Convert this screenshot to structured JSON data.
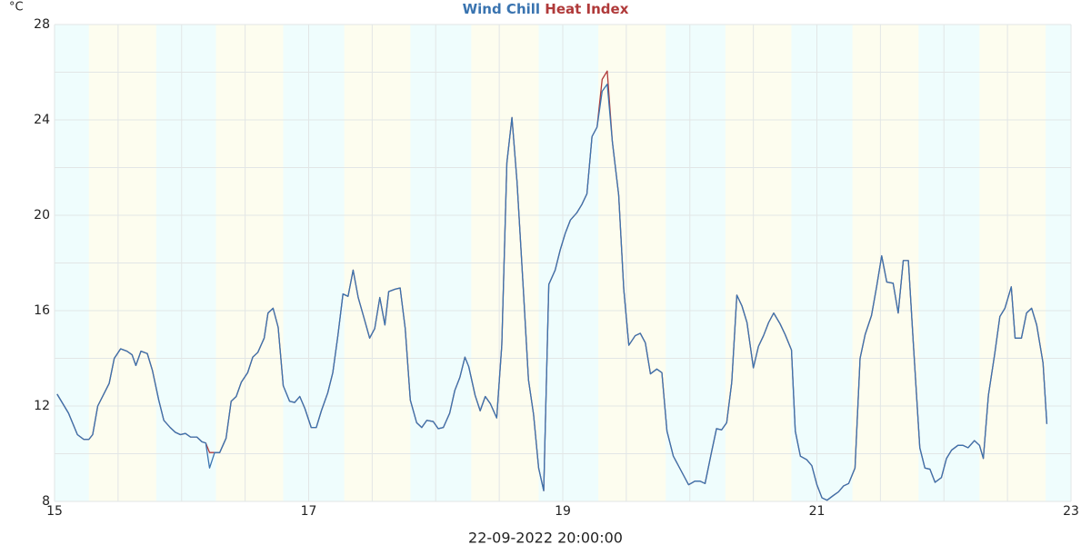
{
  "chart_data": {
    "type": "line",
    "title_series": [
      0,
      1
    ],
    "y_label": "°C",
    "x_label": "22-09-2022 20:00:00",
    "xlim": [
      15,
      23
    ],
    "ylim": [
      8,
      28
    ],
    "xticks": [
      15,
      17,
      19,
      21,
      23
    ],
    "yticks": [
      8,
      12,
      16,
      20,
      24,
      28
    ],
    "xgrid": [
      15.5,
      16,
      16.5,
      17,
      17.5,
      18,
      18.5,
      19,
      19.5,
      20,
      20.5,
      21,
      21.5,
      22,
      22.5
    ],
    "ygrid": [
      10,
      12,
      14,
      16,
      18,
      20,
      22,
      24,
      26
    ],
    "grid": true,
    "night_color": "#effdfd",
    "day_color": "#fdfdef",
    "day_bands": [
      [
        15.27,
        15.8
      ],
      [
        16.27,
        16.8
      ],
      [
        17.28,
        17.8
      ],
      [
        18.28,
        18.81
      ],
      [
        19.28,
        19.81
      ],
      [
        20.28,
        20.8
      ],
      [
        21.28,
        21.8
      ],
      [
        22.28,
        22.8
      ]
    ],
    "x": [
      15.02,
      15.11,
      15.18,
      15.23,
      15.27,
      15.3,
      15.34,
      15.43,
      15.47,
      15.52,
      15.57,
      15.61,
      15.64,
      15.68,
      15.73,
      15.77,
      15.82,
      15.86,
      15.91,
      15.95,
      15.99,
      16.03,
      16.07,
      16.12,
      16.16,
      16.19,
      16.22,
      16.26,
      16.3,
      16.35,
      16.39,
      16.43,
      16.47,
      16.52,
      16.56,
      16.6,
      16.65,
      16.68,
      16.72,
      16.76,
      16.8,
      16.85,
      16.89,
      16.93,
      16.97,
      17.02,
      17.06,
      17.1,
      17.15,
      17.19,
      17.23,
      17.27,
      17.31,
      17.35,
      17.39,
      17.43,
      17.48,
      17.52,
      17.56,
      17.6,
      17.63,
      17.68,
      17.72,
      17.76,
      17.8,
      17.85,
      17.89,
      17.93,
      17.98,
      18.02,
      18.06,
      18.11,
      18.15,
      18.19,
      18.23,
      18.26,
      18.31,
      18.35,
      18.39,
      18.43,
      18.48,
      18.52,
      18.56,
      18.6,
      18.64,
      18.69,
      18.73,
      18.77,
      18.81,
      18.85,
      18.89,
      18.94,
      18.98,
      19.02,
      19.06,
      19.11,
      19.15,
      19.19,
      19.23,
      19.27,
      19.31,
      19.35,
      19.39,
      19.44,
      19.48,
      19.52,
      19.57,
      19.61,
      19.65,
      19.69,
      19.74,
      19.78,
      19.82,
      19.87,
      19.91,
      19.95,
      19.99,
      20.04,
      20.08,
      20.12,
      20.17,
      20.21,
      20.25,
      20.29,
      20.33,
      20.37,
      20.41,
      20.45,
      20.5,
      20.54,
      20.58,
      20.62,
      20.66,
      20.71,
      20.75,
      20.8,
      20.83,
      20.87,
      20.92,
      20.96,
      21.0,
      21.04,
      21.08,
      21.13,
      21.17,
      21.21,
      21.25,
      21.3,
      21.34,
      21.38,
      21.43,
      21.47,
      21.51,
      21.55,
      21.6,
      21.64,
      21.68,
      21.72,
      21.76,
      21.81,
      21.85,
      21.89,
      21.93,
      21.98,
      22.02,
      22.06,
      22.11,
      22.15,
      22.19,
      22.24,
      22.28,
      22.31,
      22.35,
      22.4,
      22.44,
      22.48,
      22.53,
      22.56,
      22.61,
      22.65,
      22.69,
      22.73,
      22.78,
      22.81
    ],
    "series": [
      {
        "name": "Wind Chill",
        "color": "#3a74b0",
        "values": [
          12.5,
          11.7,
          10.8,
          10.6,
          10.6,
          10.8,
          12.0,
          12.95,
          14.0,
          14.4,
          14.3,
          14.15,
          13.7,
          14.3,
          14.2,
          13.5,
          12.25,
          11.4,
          11.1,
          10.9,
          10.8,
          10.85,
          10.7,
          10.7,
          10.5,
          10.45,
          9.4,
          10.05,
          10.05,
          10.65,
          12.2,
          12.4,
          13.0,
          13.4,
          14.05,
          14.25,
          14.85,
          15.9,
          16.1,
          15.3,
          12.85,
          12.2,
          12.15,
          12.4,
          11.9,
          11.1,
          11.1,
          11.8,
          12.55,
          13.4,
          14.95,
          16.7,
          16.6,
          17.7,
          16.55,
          15.8,
          14.85,
          15.25,
          16.55,
          15.4,
          16.8,
          16.9,
          16.95,
          15.25,
          12.25,
          11.3,
          11.1,
          11.4,
          11.35,
          11.05,
          11.1,
          11.7,
          12.65,
          13.2,
          14.05,
          13.65,
          12.45,
          11.8,
          12.4,
          12.1,
          11.5,
          14.55,
          22.2,
          24.1,
          21.4,
          16.85,
          13.1,
          11.65,
          9.4,
          8.45,
          17.1,
          17.7,
          18.55,
          19.25,
          19.8,
          20.1,
          20.45,
          20.9,
          23.3,
          23.7,
          25.2,
          25.5,
          23.1,
          20.85,
          16.9,
          14.55,
          14.95,
          15.05,
          14.65,
          13.35,
          13.55,
          13.4,
          10.95,
          9.9,
          9.5,
          9.1,
          8.7,
          8.85,
          8.85,
          8.75,
          10.05,
          11.05,
          11.0,
          11.3,
          13.0,
          16.65,
          16.2,
          15.5,
          13.6,
          14.5,
          14.95,
          15.5,
          15.9,
          15.45,
          15.0,
          14.35,
          10.95,
          9.9,
          9.75,
          9.5,
          8.7,
          8.15,
          8.05,
          8.25,
          8.4,
          8.65,
          8.75,
          9.4,
          14.0,
          15.0,
          15.8,
          17.0,
          18.3,
          17.2,
          17.15,
          15.9,
          18.1,
          18.1,
          14.55,
          10.25,
          9.4,
          9.35,
          8.8,
          9.0,
          9.8,
          10.15,
          10.35,
          10.35,
          10.25,
          10.55,
          10.35,
          9.8,
          12.45,
          14.2,
          15.75,
          16.1,
          17.0,
          14.85,
          14.85,
          15.9,
          16.1,
          15.4,
          13.8,
          11.25
        ]
      },
      {
        "name": "Heat Index",
        "color": "#b03a3a",
        "values": [
          12.5,
          11.7,
          10.8,
          10.6,
          10.6,
          10.8,
          12.0,
          12.95,
          14.0,
          14.4,
          14.3,
          14.15,
          13.7,
          14.3,
          14.2,
          13.5,
          12.25,
          11.4,
          11.1,
          10.9,
          10.8,
          10.85,
          10.7,
          10.7,
          10.5,
          10.45,
          10.05,
          10.05,
          10.05,
          10.65,
          12.2,
          12.4,
          13.0,
          13.4,
          14.05,
          14.25,
          14.85,
          15.9,
          16.1,
          15.3,
          12.85,
          12.2,
          12.15,
          12.4,
          11.9,
          11.1,
          11.1,
          11.8,
          12.55,
          13.4,
          14.95,
          16.7,
          16.6,
          17.7,
          16.55,
          15.8,
          14.85,
          15.25,
          16.55,
          15.4,
          16.8,
          16.9,
          16.95,
          15.25,
          12.25,
          11.3,
          11.1,
          11.4,
          11.35,
          11.05,
          11.1,
          11.7,
          12.65,
          13.2,
          14.05,
          13.65,
          12.45,
          11.8,
          12.4,
          12.1,
          11.5,
          14.55,
          22.2,
          24.1,
          21.4,
          16.85,
          13.1,
          11.65,
          9.4,
          8.45,
          17.1,
          17.7,
          18.55,
          19.25,
          19.8,
          20.1,
          20.45,
          20.9,
          23.3,
          23.7,
          25.7,
          26.05,
          23.1,
          20.85,
          16.9,
          14.55,
          14.95,
          15.05,
          14.65,
          13.35,
          13.55,
          13.4,
          10.95,
          9.9,
          9.5,
          9.1,
          8.7,
          8.85,
          8.85,
          8.75,
          10.05,
          11.05,
          11.0,
          11.3,
          13.0,
          16.65,
          16.2,
          15.5,
          13.6,
          14.5,
          14.95,
          15.5,
          15.9,
          15.45,
          15.0,
          14.35,
          10.95,
          9.9,
          9.75,
          9.5,
          8.7,
          8.15,
          8.05,
          8.25,
          8.4,
          8.65,
          8.75,
          9.4,
          14.0,
          15.0,
          15.8,
          17.0,
          18.3,
          17.2,
          17.15,
          15.9,
          18.1,
          18.1,
          14.55,
          10.25,
          9.4,
          9.35,
          8.8,
          9.0,
          9.8,
          10.15,
          10.35,
          10.35,
          10.25,
          10.55,
          10.35,
          9.8,
          12.45,
          14.2,
          15.75,
          16.1,
          17.0,
          14.85,
          14.85,
          15.9,
          16.1,
          15.4,
          13.8,
          11.25
        ]
      }
    ]
  }
}
